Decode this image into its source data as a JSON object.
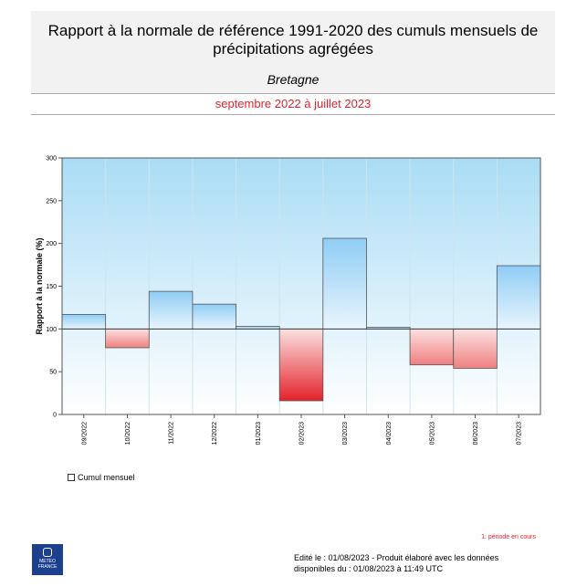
{
  "header": {
    "title_line1": "Rapport à la normale de référence 1991-2020 des cumuls mensuels de",
    "title_line2": "précipitations agrégées",
    "region": "Bretagne",
    "period": "septembre 2022 à juillet 2023"
  },
  "chart_data": {
    "type": "bar",
    "title": "",
    "xlabel": "",
    "ylabel": "Rapport à la normale (%)",
    "ylim": [
      0,
      300
    ],
    "yticks": [
      0,
      50,
      100,
      150,
      200,
      250,
      300
    ],
    "baseline": 100,
    "grid": true,
    "categories": [
      "09/2022",
      "10/2022",
      "11/2022",
      "12/2022",
      "01/2023",
      "02/2023",
      "03/2023",
      "04/2023",
      "05/2023",
      "06/2023",
      "07/2023"
    ],
    "series": [
      {
        "name": "Cumul mensuel",
        "values": [
          117,
          78,
          144,
          129,
          103,
          16,
          206,
          102,
          58,
          54,
          174
        ]
      }
    ],
    "colors": {
      "above": "#8fcdf5",
      "below": "#f08080",
      "deficit_strong": "#e3222a"
    }
  },
  "legend": {
    "label": "Cumul mensuel"
  },
  "note": "1: période en cours",
  "footer": {
    "line1": "Edité le : 01/08/2023 - Produit élaboré avec les données",
    "line2": "disponibles du : 01/08/2023 à 11:49 UTC"
  },
  "logo": {
    "line1": "METEO",
    "line2": "FRANCE"
  }
}
